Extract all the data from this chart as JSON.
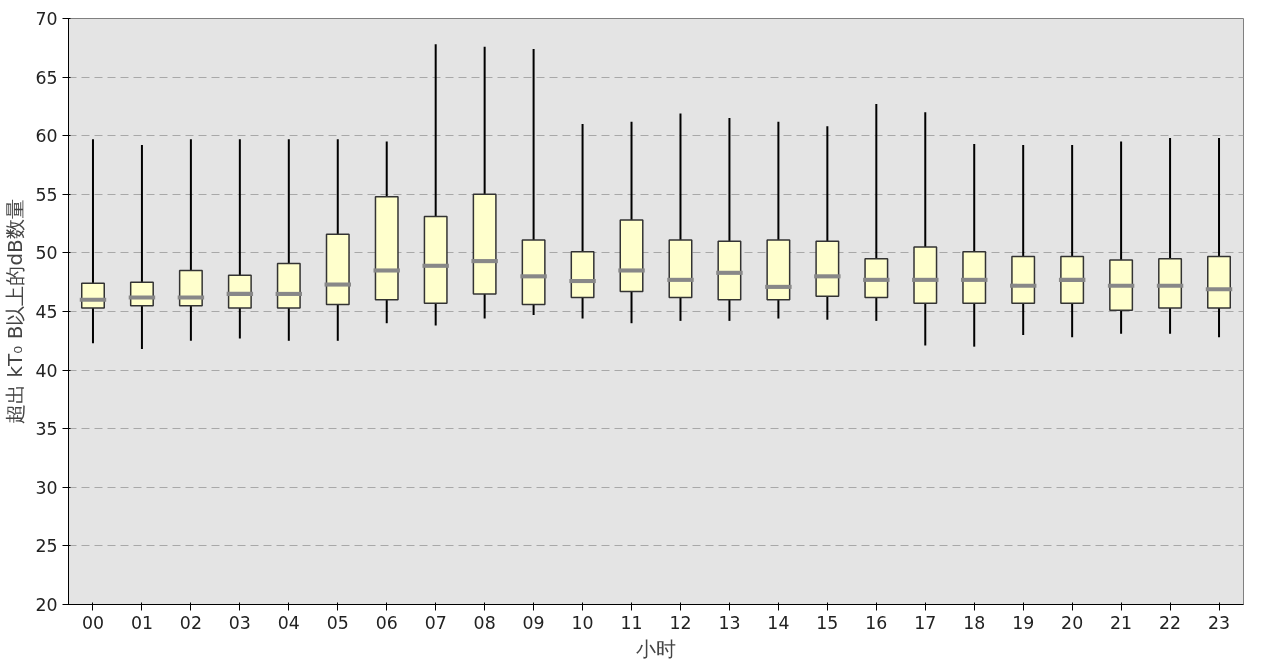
{
  "chart_data": {
    "type": "box",
    "xlabel": "小时",
    "ylabel": "超出 kT₀ B以上的dB数量",
    "categories": [
      "00",
      "01",
      "02",
      "03",
      "04",
      "05",
      "06",
      "07",
      "08",
      "09",
      "10",
      "11",
      "12",
      "13",
      "14",
      "15",
      "16",
      "17",
      "18",
      "19",
      "20",
      "21",
      "22",
      "23"
    ],
    "color": "#ffffcc",
    "ylim": [
      20,
      70
    ],
    "yticks": [
      20,
      25,
      30,
      35,
      40,
      45,
      50,
      55,
      60,
      65,
      70
    ],
    "grid": "y",
    "boxes": [
      {
        "low": 42.3,
        "q1": 45.3,
        "median": 46.0,
        "q3": 47.4,
        "high": 59.7
      },
      {
        "low": 41.8,
        "q1": 45.5,
        "median": 46.2,
        "q3": 47.5,
        "high": 59.2
      },
      {
        "low": 42.5,
        "q1": 45.5,
        "median": 46.2,
        "q3": 48.5,
        "high": 59.7
      },
      {
        "low": 42.7,
        "q1": 45.3,
        "median": 46.5,
        "q3": 48.1,
        "high": 59.7
      },
      {
        "low": 42.5,
        "q1": 45.3,
        "median": 46.5,
        "q3": 49.1,
        "high": 59.7
      },
      {
        "low": 42.5,
        "q1": 45.6,
        "median": 47.3,
        "q3": 51.6,
        "high": 59.7
      },
      {
        "low": 44.0,
        "q1": 46.0,
        "median": 48.5,
        "q3": 54.8,
        "high": 59.5
      },
      {
        "low": 43.8,
        "q1": 45.7,
        "median": 48.9,
        "q3": 53.1,
        "high": 67.8
      },
      {
        "low": 44.4,
        "q1": 46.5,
        "median": 49.3,
        "q3": 55.0,
        "high": 67.6
      },
      {
        "low": 44.7,
        "q1": 45.6,
        "median": 48.0,
        "q3": 51.1,
        "high": 67.4
      },
      {
        "low": 44.4,
        "q1": 46.2,
        "median": 47.6,
        "q3": 50.1,
        "high": 61.0
      },
      {
        "low": 44.0,
        "q1": 46.7,
        "median": 48.5,
        "q3": 52.8,
        "high": 61.2
      },
      {
        "low": 44.2,
        "q1": 46.2,
        "median": 47.7,
        "q3": 51.1,
        "high": 61.9
      },
      {
        "low": 44.2,
        "q1": 46.0,
        "median": 48.3,
        "q3": 51.0,
        "high": 61.5
      },
      {
        "low": 44.4,
        "q1": 46.0,
        "median": 47.1,
        "q3": 51.1,
        "high": 61.2
      },
      {
        "low": 44.3,
        "q1": 46.3,
        "median": 48.0,
        "q3": 51.0,
        "high": 60.8
      },
      {
        "low": 44.2,
        "q1": 46.2,
        "median": 47.7,
        "q3": 49.5,
        "high": 62.7
      },
      {
        "low": 42.1,
        "q1": 45.7,
        "median": 47.7,
        "q3": 50.5,
        "high": 62.0
      },
      {
        "low": 42.0,
        "q1": 45.7,
        "median": 47.7,
        "q3": 50.1,
        "high": 59.3
      },
      {
        "low": 43.0,
        "q1": 45.7,
        "median": 47.2,
        "q3": 49.7,
        "high": 59.2
      },
      {
        "low": 42.8,
        "q1": 45.7,
        "median": 47.7,
        "q3": 49.7,
        "high": 59.2
      },
      {
        "low": 43.1,
        "q1": 45.1,
        "median": 47.2,
        "q3": 49.4,
        "high": 59.5
      },
      {
        "low": 43.1,
        "q1": 45.3,
        "median": 47.2,
        "q3": 49.5,
        "high": 59.8
      },
      {
        "low": 42.8,
        "q1": 45.3,
        "median": 46.9,
        "q3": 49.7,
        "high": 59.8
      }
    ]
  }
}
